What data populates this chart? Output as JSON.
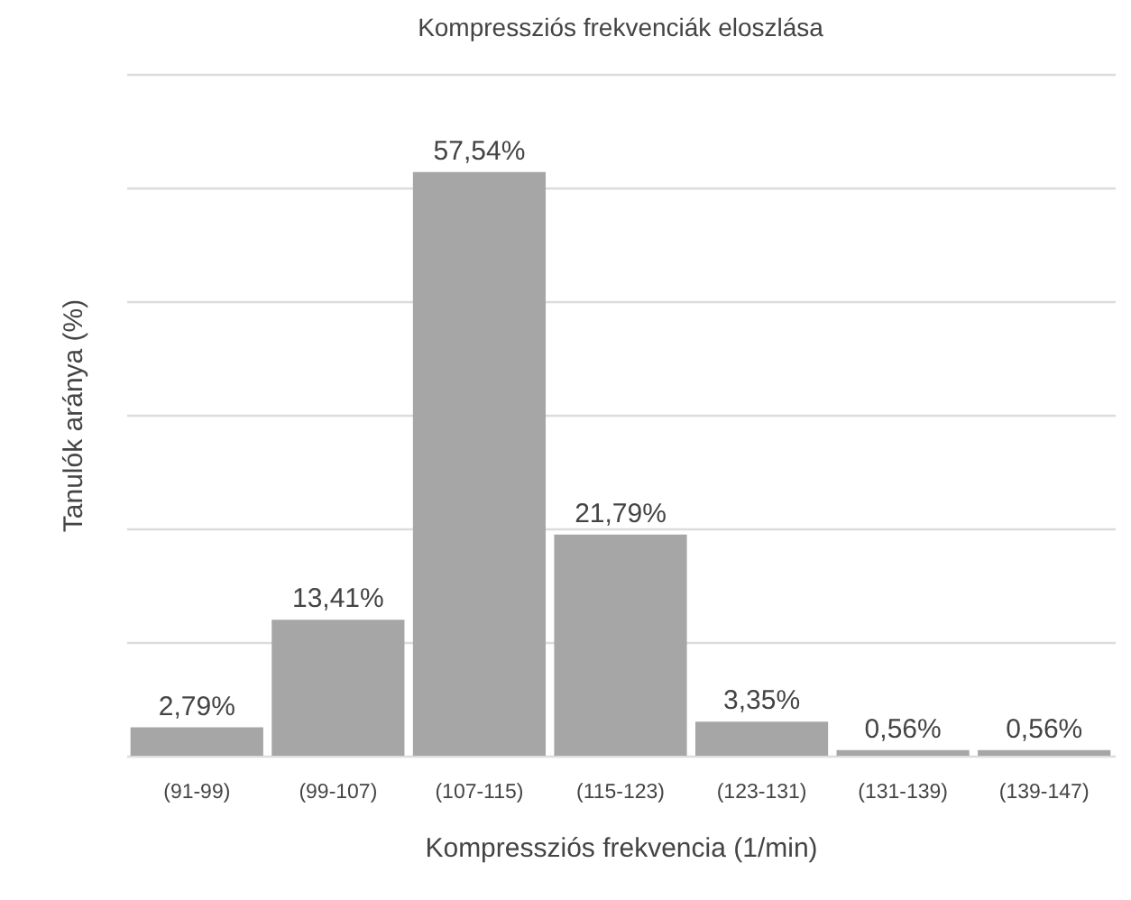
{
  "chart_data": {
    "type": "bar",
    "title": "Kompressziós frekvenciák eloszlása",
    "xlabel": "Kompressziós frekvencia (1/min)",
    "ylabel": "Tanulók aránya (%)",
    "categories": [
      "(91-99)",
      "(99-107)",
      "(107-115)",
      "(115-123)",
      "(123-131)",
      "(131-139)",
      "(139-147)"
    ],
    "values": [
      2.79,
      13.41,
      57.54,
      21.79,
      3.35,
      0.56,
      0.56
    ],
    "value_labels": [
      "2,79%",
      "13,41%",
      "57,54%",
      "21,79%",
      "3,35%",
      "0,56%",
      "0,56%"
    ],
    "color": "#a6a6a6",
    "ylim": [
      0,
      67.2
    ],
    "yticks": [
      {
        "value": 0,
        "label": null
      },
      {
        "value": 11.2,
        "label": null
      },
      {
        "value": 22.4,
        "label": null
      },
      {
        "value": 33.6,
        "label": null
      },
      {
        "value": 44.8,
        "label": null
      },
      {
        "value": 56,
        "label": null
      },
      {
        "value": 67.2,
        "label": null
      }
    ],
    "grid": "y",
    "tick_labels": "x"
  }
}
